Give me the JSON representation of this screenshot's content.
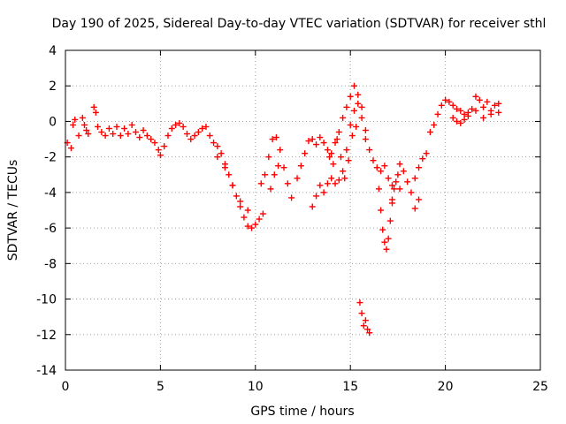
{
  "chart_data": {
    "type": "scatter",
    "title": "Day 190 of 2025, Sidereal Day-to-day VTEC variation (SDTVAR) for receiver sthl",
    "xlabel": "GPS time / hours",
    "ylabel": "SDTVAR / TECUs",
    "xlim": [
      0,
      25
    ],
    "ylim": [
      -14,
      4
    ],
    "xticks": [
      0,
      5,
      10,
      15,
      20,
      25
    ],
    "yticks": [
      4,
      2,
      0,
      -2,
      -4,
      -6,
      -8,
      -10,
      -12,
      -14
    ],
    "grid": true,
    "marker": "plus",
    "series": [
      {
        "name": "sthl",
        "color": "#ff0000",
        "points": [
          [
            0.1,
            -1.2
          ],
          [
            0.3,
            -1.5
          ],
          [
            0.4,
            -0.2
          ],
          [
            0.5,
            0.1
          ],
          [
            0.7,
            -0.8
          ],
          [
            0.9,
            0.2
          ],
          [
            1.0,
            -0.2
          ],
          [
            1.1,
            -0.5
          ],
          [
            1.2,
            -0.7
          ],
          [
            1.5,
            0.8
          ],
          [
            1.6,
            0.5
          ],
          [
            1.7,
            -0.3
          ],
          [
            1.9,
            -0.6
          ],
          [
            2.1,
            -0.8
          ],
          [
            2.3,
            -0.4
          ],
          [
            2.5,
            -0.7
          ],
          [
            2.7,
            -0.3
          ],
          [
            2.9,
            -0.8
          ],
          [
            3.1,
            -0.4
          ],
          [
            3.3,
            -0.7
          ],
          [
            3.5,
            -0.2
          ],
          [
            3.7,
            -0.6
          ],
          [
            3.9,
            -0.9
          ],
          [
            4.1,
            -0.5
          ],
          [
            4.3,
            -0.8
          ],
          [
            4.5,
            -1.0
          ],
          [
            4.7,
            -1.2
          ],
          [
            4.9,
            -1.6
          ],
          [
            5.0,
            -1.9
          ],
          [
            5.2,
            -1.4
          ],
          [
            5.4,
            -0.8
          ],
          [
            5.6,
            -0.4
          ],
          [
            5.8,
            -0.2
          ],
          [
            6.0,
            -0.1
          ],
          [
            6.2,
            -0.3
          ],
          [
            6.4,
            -0.7
          ],
          [
            6.6,
            -1.0
          ],
          [
            6.8,
            -0.8
          ],
          [
            7.0,
            -0.6
          ],
          [
            7.2,
            -0.4
          ],
          [
            7.4,
            -0.3
          ],
          [
            7.6,
            -0.8
          ],
          [
            7.8,
            -1.2
          ],
          [
            8.0,
            -1.4
          ],
          [
            8.2,
            -1.8
          ],
          [
            8.4,
            -2.4
          ],
          [
            8.6,
            -3.0
          ],
          [
            8.8,
            -3.6
          ],
          [
            9.0,
            -4.2
          ],
          [
            9.2,
            -4.8
          ],
          [
            9.4,
            -5.4
          ],
          [
            9.6,
            -5.9
          ],
          [
            9.8,
            -6.0
          ],
          [
            10.0,
            -5.8
          ],
          [
            10.2,
            -5.5
          ],
          [
            10.4,
            -5.2
          ],
          [
            9.6,
            -5.0
          ],
          [
            9.2,
            -4.5
          ],
          [
            8.8,
            -3.6
          ],
          [
            8.4,
            -2.6
          ],
          [
            8.0,
            -2.0
          ],
          [
            10.3,
            -3.5
          ],
          [
            10.5,
            -3.0
          ],
          [
            10.7,
            -2.0
          ],
          [
            10.9,
            -1.0
          ],
          [
            11.1,
            -0.9
          ],
          [
            11.3,
            -1.6
          ],
          [
            11.5,
            -2.6
          ],
          [
            11.7,
            -3.5
          ],
          [
            11.9,
            -4.3
          ],
          [
            11.2,
            -2.5
          ],
          [
            11.0,
            -3.0
          ],
          [
            10.8,
            -3.8
          ],
          [
            12.2,
            -3.2
          ],
          [
            12.4,
            -2.5
          ],
          [
            12.6,
            -1.8
          ],
          [
            12.8,
            -1.1
          ],
          [
            13.0,
            -1.0
          ],
          [
            13.2,
            -1.3
          ],
          [
            13.4,
            -0.9
          ],
          [
            13.6,
            -1.2
          ],
          [
            13.8,
            -1.6
          ],
          [
            14.0,
            -1.8
          ],
          [
            14.2,
            -1.2
          ],
          [
            14.4,
            -0.6
          ],
          [
            14.6,
            0.2
          ],
          [
            14.8,
            0.8
          ],
          [
            15.0,
            1.4
          ],
          [
            15.2,
            2.0
          ],
          [
            15.4,
            1.5
          ],
          [
            15.6,
            0.8
          ],
          [
            15.8,
            -0.5
          ],
          [
            16.0,
            -1.6
          ],
          [
            16.2,
            -2.2
          ],
          [
            13.0,
            -4.8
          ],
          [
            13.2,
            -4.2
          ],
          [
            13.4,
            -3.6
          ],
          [
            13.6,
            -4.0
          ],
          [
            13.8,
            -3.5
          ],
          [
            14.0,
            -3.2
          ],
          [
            14.2,
            -3.5
          ],
          [
            14.4,
            -3.3
          ],
          [
            14.6,
            -2.8
          ],
          [
            14.8,
            -1.6
          ],
          [
            15.0,
            -0.2
          ],
          [
            15.2,
            0.6
          ],
          [
            15.4,
            1.0
          ],
          [
            15.6,
            0.2
          ],
          [
            15.8,
            -1.0
          ],
          [
            15.3,
            -0.3
          ],
          [
            15.1,
            -0.8
          ],
          [
            14.9,
            -2.2
          ],
          [
            14.7,
            -3.2
          ],
          [
            14.5,
            -2.0
          ],
          [
            14.3,
            -1.0
          ],
          [
            14.1,
            -2.4
          ],
          [
            13.9,
            -2.0
          ],
          [
            15.5,
            -10.2
          ],
          [
            15.6,
            -10.8
          ],
          [
            15.7,
            -11.5
          ],
          [
            15.8,
            -11.2
          ],
          [
            15.9,
            -11.7
          ],
          [
            16.0,
            -11.9
          ],
          [
            16.4,
            -2.6
          ],
          [
            16.5,
            -3.8
          ],
          [
            16.6,
            -5.0
          ],
          [
            16.7,
            -6.1
          ],
          [
            16.8,
            -6.8
          ],
          [
            16.9,
            -7.2
          ],
          [
            17.0,
            -6.6
          ],
          [
            17.1,
            -5.6
          ],
          [
            17.2,
            -4.6
          ],
          [
            17.3,
            -3.8
          ],
          [
            17.4,
            -3.4
          ],
          [
            17.5,
            -3.0
          ],
          [
            16.6,
            -2.8
          ],
          [
            16.8,
            -2.5
          ],
          [
            17.0,
            -3.2
          ],
          [
            17.2,
            -3.6
          ],
          [
            17.6,
            -2.4
          ],
          [
            17.8,
            -2.8
          ],
          [
            18.0,
            -3.4
          ],
          [
            18.2,
            -4.0
          ],
          [
            18.4,
            -3.2
          ],
          [
            18.6,
            -2.6
          ],
          [
            18.8,
            -2.1
          ],
          [
            19.0,
            -1.8
          ],
          [
            19.2,
            -0.6
          ],
          [
            19.4,
            -0.2
          ],
          [
            19.6,
            0.4
          ],
          [
            19.8,
            0.9
          ],
          [
            20.0,
            1.2
          ],
          [
            20.2,
            1.1
          ],
          [
            20.4,
            0.9
          ],
          [
            20.6,
            0.7
          ],
          [
            20.8,
            0.6
          ],
          [
            21.0,
            0.4
          ],
          [
            21.2,
            0.5
          ],
          [
            21.4,
            0.7
          ],
          [
            21.6,
            1.4
          ],
          [
            21.8,
            1.2
          ],
          [
            22.0,
            0.8
          ],
          [
            22.2,
            1.1
          ],
          [
            22.4,
            0.6
          ],
          [
            22.6,
            0.9
          ],
          [
            22.8,
            0.5
          ],
          [
            20.4,
            0.2
          ],
          [
            20.6,
            0.0
          ],
          [
            20.8,
            -0.1
          ],
          [
            21.0,
            0.1
          ],
          [
            21.2,
            0.3
          ],
          [
            21.6,
            0.6
          ],
          [
            22.0,
            0.2
          ],
          [
            22.4,
            0.4
          ],
          [
            22.8,
            1.0
          ],
          [
            18.6,
            -4.4
          ],
          [
            18.4,
            -4.9
          ],
          [
            17.6,
            -3.8
          ],
          [
            17.2,
            -4.4
          ]
        ]
      }
    ]
  }
}
